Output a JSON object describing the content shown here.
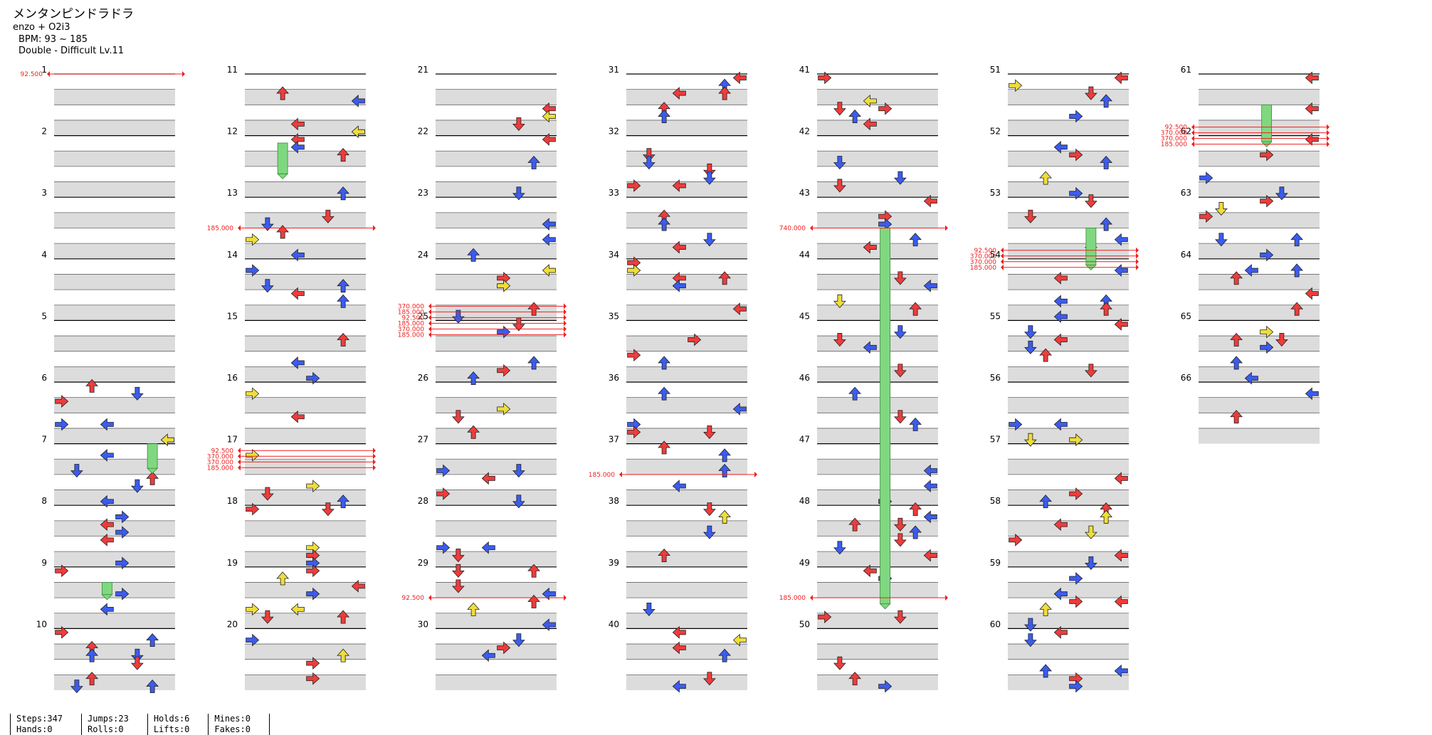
{
  "song": {
    "title": "メンタンピンドラドラ",
    "artist": "enzo + O2i3",
    "bpm_text": "BPM: 93 ~ 185",
    "difficulty_text": "Double - Difficult Lv.11"
  },
  "colors": {
    "red": "#ee3c3c",
    "blue": "#3c5cee",
    "yellow": "#eedd3c",
    "hold": "#7fd87f",
    "line": "#ee2020"
  },
  "chart_data": {
    "type": "step-chart",
    "measures": 66,
    "measures_per_column": 10,
    "bpm_changes": [
      {
        "measure": 1.0,
        "labels": [
          "92.500"
        ]
      },
      {
        "measure": 13.5,
        "labels": [
          "185.000"
        ]
      },
      {
        "measure": 17.25,
        "labels": [
          "92.500",
          "370.000",
          "370.000",
          "185.000"
        ]
      },
      {
        "measure": 25.0,
        "labels": [
          "370.000",
          "185.000",
          "92.500",
          "185.000",
          "370.000",
          "185.000"
        ]
      },
      {
        "measure": 29.5,
        "labels": [
          "92.500"
        ]
      },
      {
        "measure": 37.5,
        "labels": [
          "185.000"
        ]
      },
      {
        "measure": 43.5,
        "labels": [
          "740.000"
        ]
      },
      {
        "measure": 49.5,
        "labels": [
          "185.000"
        ]
      },
      {
        "measure": 54.0,
        "labels": [
          "92.500",
          "370.000",
          "370.000",
          "185.000"
        ]
      },
      {
        "measure": 62.0,
        "labels": [
          "92.500",
          "370.000",
          "370.000",
          "185.000"
        ]
      }
    ],
    "holds": [
      {
        "start": 12.12,
        "end": 12.62,
        "lane": 2
      },
      {
        "start": 7.0,
        "end": 7.4,
        "lane": 6
      },
      {
        "start": 9.25,
        "end": 9.45,
        "lane": 3
      },
      {
        "start": 43.5,
        "end": 49.6,
        "lane": 4
      },
      {
        "start": 53.5,
        "end": 54.1,
        "lane": 5
      },
      {
        "start": 61.5,
        "end": 62.1,
        "lane": 4
      }
    ]
  },
  "stats": {
    "steps": "Steps:347",
    "hands": "Hands:0",
    "jumps": "Jumps:23",
    "rolls": "Rolls:0",
    "holds": "Holds:6",
    "lifts": "Lifts:0",
    "mines": "Mines:0",
    "fakes": "Fakes:0"
  }
}
